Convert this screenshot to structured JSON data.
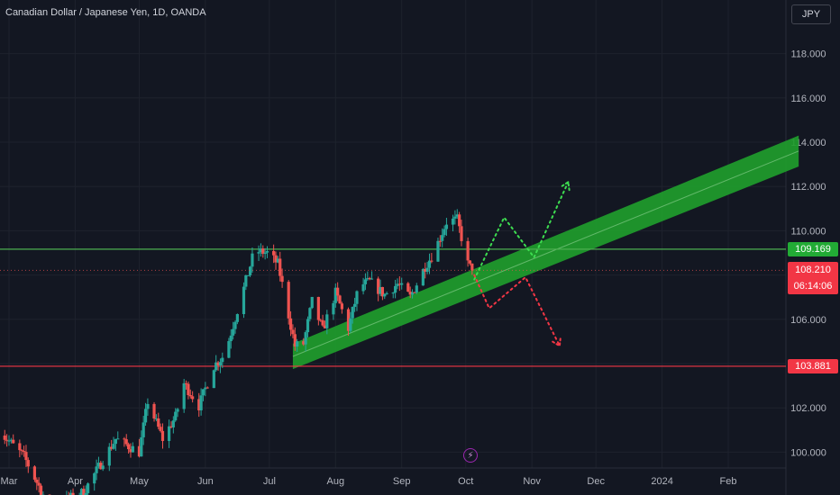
{
  "header": {
    "symbol_title": "Canadian Dollar / Japanese Yen, 1D, OANDA",
    "currency": "JPY"
  },
  "price_tags": {
    "green_level": "109.169",
    "current_price": "108.210",
    "countdown": "06:14:06",
    "red_level": "103.881"
  },
  "colors": {
    "background": "#131722",
    "grid": "#1e222d",
    "up_candle": "#26a69a",
    "down_candle": "#ef5350",
    "support_line": "#f23645",
    "resistance_line": "#4caf50",
    "channel": "#1f9d2c"
  },
  "icons": {
    "event": "lightning-icon"
  },
  "chart_data": {
    "type": "candlestick",
    "title": "Canadian Dollar / Japanese Yen, 1D, OANDA",
    "ylim": [
      99.2,
      119.5
    ],
    "y_ticks": [
      "100.000",
      "102.000",
      "104.000",
      "106.000",
      "108.000",
      "110.000",
      "112.000",
      "114.000",
      "116.000",
      "118.000"
    ],
    "y_tick_values": [
      100,
      102,
      104,
      106,
      108,
      110,
      112,
      114,
      116,
      118
    ],
    "x_ticks": [
      "Mar",
      "Apr",
      "May",
      "Jun",
      "Jul",
      "Aug",
      "Sep",
      "Oct",
      "Nov",
      "Dec",
      "2024",
      "Feb"
    ],
    "x_tick_dates": [
      "2023-03-01",
      "2023-04-01",
      "2023-05-01",
      "2023-06-01",
      "2023-07-01",
      "2023-08-01",
      "2023-09-01",
      "2023-10-01",
      "2023-11-01",
      "2023-12-01",
      "2024-01-01",
      "2024-02-01"
    ],
    "horizontal_levels": [
      {
        "value": 109.169,
        "color": "green"
      },
      {
        "value": 103.881,
        "color": "red"
      }
    ],
    "channel": {
      "start_date": "2023-07-12",
      "end_date": "2024-03-05",
      "lower_start": 103.75,
      "upper_start": 104.9,
      "lower_end": 112.9,
      "upper_end": 114.3
    },
    "projections": [
      {
        "color": "green",
        "dates": [
          "2023-10-05",
          "2023-10-19",
          "2023-11-02",
          "2023-11-18"
        ],
        "values": [
          107.8,
          110.6,
          108.8,
          112.2
        ]
      },
      {
        "color": "red",
        "dates": [
          "2023-10-05",
          "2023-10-12",
          "2023-10-29",
          "2023-11-14"
        ],
        "values": [
          108.0,
          106.5,
          107.9,
          104.8
        ]
      }
    ],
    "last_price": 108.21,
    "anchors": [
      {
        "date": "2023-02-24",
        "value": 101.0
      },
      {
        "date": "2023-03-08",
        "value": 99.8
      },
      {
        "date": "2023-03-20",
        "value": 97.5
      },
      {
        "date": "2023-04-05",
        "value": 98.2
      },
      {
        "date": "2023-04-20",
        "value": 100.6
      },
      {
        "date": "2023-05-01",
        "value": 100.0
      },
      {
        "date": "2023-05-05",
        "value": 102.3
      },
      {
        "date": "2023-05-12",
        "value": 100.6
      },
      {
        "date": "2023-05-18",
        "value": 101.6
      },
      {
        "date": "2023-05-22",
        "value": 103.1
      },
      {
        "date": "2023-05-29",
        "value": 102.1
      },
      {
        "date": "2023-06-05",
        "value": 103.9
      },
      {
        "date": "2023-06-10",
        "value": 104.4
      },
      {
        "date": "2023-06-19",
        "value": 107.4
      },
      {
        "date": "2023-06-24",
        "value": 109.1
      },
      {
        "date": "2023-06-30",
        "value": 109.0
      },
      {
        "date": "2023-07-05",
        "value": 108.5
      },
      {
        "date": "2023-07-13",
        "value": 104.8
      },
      {
        "date": "2023-07-17",
        "value": 104.9
      },
      {
        "date": "2023-07-21",
        "value": 106.8
      },
      {
        "date": "2023-07-26",
        "value": 105.5
      },
      {
        "date": "2023-08-01",
        "value": 107.2
      },
      {
        "date": "2023-08-07",
        "value": 105.6
      },
      {
        "date": "2023-08-12",
        "value": 107.5
      },
      {
        "date": "2023-08-17",
        "value": 107.7
      },
      {
        "date": "2023-08-24",
        "value": 107.1
      },
      {
        "date": "2023-08-30",
        "value": 107.6
      },
      {
        "date": "2023-09-05",
        "value": 107.0
      },
      {
        "date": "2023-09-12",
        "value": 108.4
      },
      {
        "date": "2023-09-16",
        "value": 109.0
      },
      {
        "date": "2023-09-22",
        "value": 110.4
      },
      {
        "date": "2023-09-27",
        "value": 110.5
      },
      {
        "date": "2023-10-02",
        "value": 108.5
      },
      {
        "date": "2023-10-04",
        "value": 108.21
      }
    ]
  }
}
